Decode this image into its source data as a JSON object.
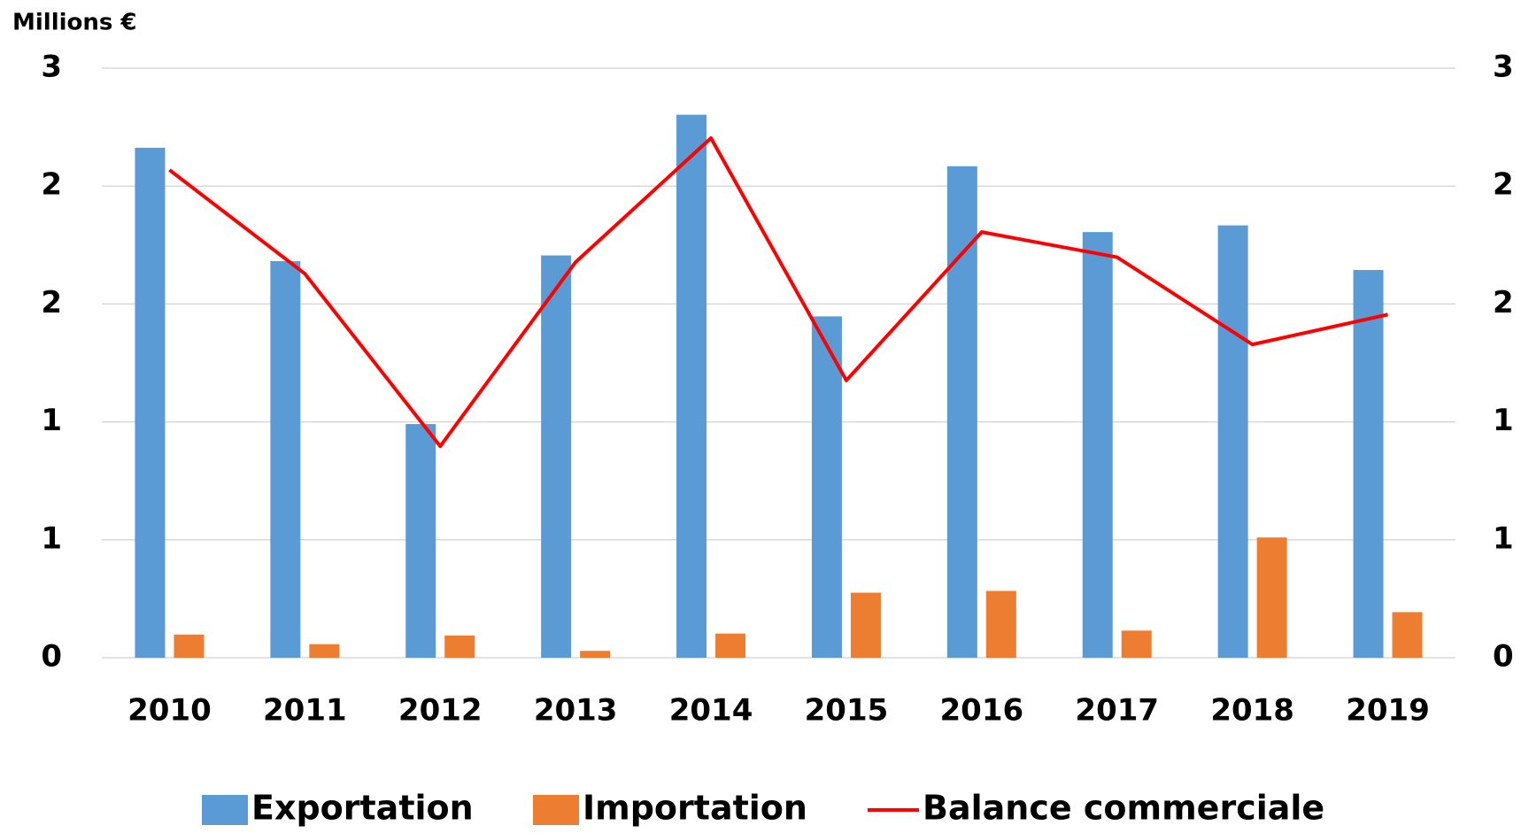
{
  "chart_data": {
    "type": "bar_line",
    "y_axis_label": "Millions €",
    "categories": [
      "2010",
      "2011",
      "2012",
      "2013",
      "2014",
      "2015",
      "2016",
      "2017",
      "2018",
      "2019"
    ],
    "series": [
      {
        "name": "Exportation",
        "type": "bar",
        "color": "#5b9bd5",
        "values": [
          2.595,
          2.018,
          1.189,
          2.047,
          2.763,
          1.737,
          2.501,
          2.166,
          2.2,
          1.973
        ]
      },
      {
        "name": "Importation",
        "type": "bar",
        "color": "#ed7d31",
        "values": [
          0.118,
          0.069,
          0.113,
          0.035,
          0.123,
          0.331,
          0.34,
          0.138,
          0.612,
          0.232
        ]
      },
      {
        "name": "Balance commerciale",
        "type": "line",
        "color": "#ff0000",
        "axis": "y2",
        "values": [
          2.482,
          1.954,
          1.076,
          2.013,
          2.644,
          1.411,
          2.166,
          2.038,
          1.594,
          1.746
        ]
      }
    ],
    "ylim": [
      0,
      3
    ],
    "yticks": [
      0,
      {
        "value": 0.6,
        "label": "1"
      },
      {
        "value": 1.2,
        "label": "1"
      },
      {
        "value": 1.8,
        "label": "2"
      },
      {
        "value": 2.4,
        "label": "2"
      },
      3
    ],
    "y2lim": [
      0,
      3
    ],
    "y2ticks": [
      0,
      {
        "value": 0.6,
        "label": "1"
      },
      {
        "value": 1.2,
        "label": "1"
      },
      {
        "value": 1.8,
        "label": "2"
      },
      {
        "value": 2.4,
        "label": "2"
      },
      3
    ],
    "grid": true,
    "legend": "bottom"
  }
}
